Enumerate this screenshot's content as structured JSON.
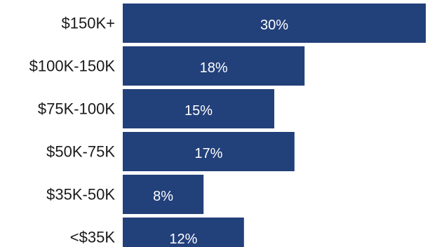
{
  "chart_data": {
    "type": "bar",
    "orientation": "horizontal",
    "categories": [
      "$150K+",
      "$100K-150K",
      "$75K-100K",
      "$50K-75K",
      "$35K-50K",
      "<$35K"
    ],
    "values": [
      30,
      18,
      15,
      17,
      8,
      12
    ],
    "data_labels": [
      "30%",
      "18%",
      "15%",
      "17%",
      "8%",
      "12%"
    ],
    "xlim": [
      0,
      32
    ],
    "grid": false,
    "legend": "none",
    "bar_color": "#22407a"
  }
}
